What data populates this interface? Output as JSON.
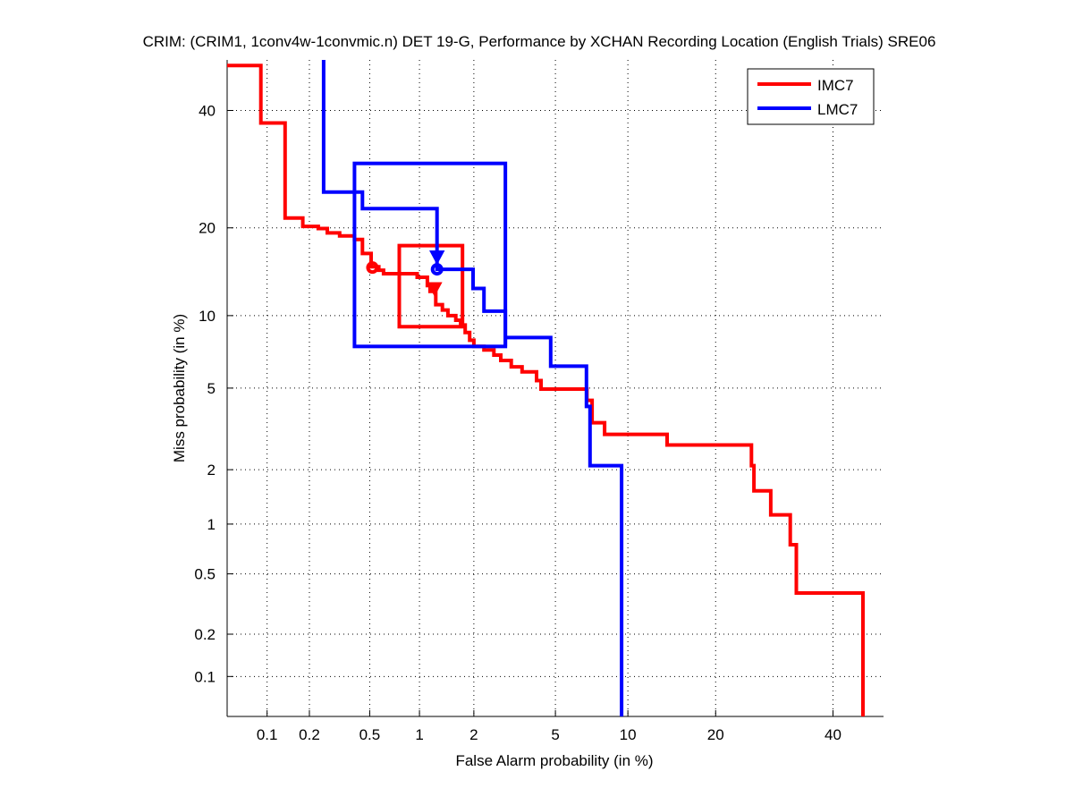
{
  "chart_data": {
    "type": "line",
    "title": "CRIM: (CRIM1, 1conv4w-1convmic.n) DET 19-G,  Performance by XCHAN Recording Location (English Trials) SRE06",
    "xlabel": "False Alarm probability (in %)",
    "ylabel": "Miss probability (in %)",
    "x_scale": "normal-deviate",
    "y_scale": "normal-deviate",
    "xlim": [
      0.05,
      50
    ],
    "ylim": [
      0.05,
      50
    ],
    "xticks": [
      0.1,
      0.2,
      0.5,
      1,
      2,
      5,
      10,
      20,
      40
    ],
    "xtick_labels": [
      "0.1",
      "0.2",
      "0.5",
      "1",
      "2",
      "5",
      "10",
      "20",
      "40"
    ],
    "yticks": [
      0.1,
      0.2,
      0.5,
      1,
      2,
      5,
      10,
      20,
      40
    ],
    "ytick_labels": [
      "0.1",
      "0.2",
      "0.5",
      "1",
      "2",
      "5",
      "10",
      "20",
      "40"
    ],
    "grid": true,
    "legend_position": "top-right",
    "series": [
      {
        "name": "IMC7",
        "color": "#ff0000",
        "points": [
          [
            0.05,
            48.9
          ],
          [
            0.09,
            48.9
          ],
          [
            0.09,
            37.6
          ],
          [
            0.135,
            37.6
          ],
          [
            0.135,
            21.4
          ],
          [
            0.18,
            21.4
          ],
          [
            0.18,
            20.2
          ],
          [
            0.23,
            20.2
          ],
          [
            0.23,
            19.9
          ],
          [
            0.265,
            19.9
          ],
          [
            0.265,
            19.3
          ],
          [
            0.32,
            19.3
          ],
          [
            0.32,
            18.9
          ],
          [
            0.4,
            18.9
          ],
          [
            0.4,
            18.4
          ],
          [
            0.45,
            18.4
          ],
          [
            0.45,
            16.6
          ],
          [
            0.51,
            16.6
          ],
          [
            0.51,
            15.0
          ],
          [
            0.57,
            15.0
          ],
          [
            0.57,
            14.6
          ],
          [
            0.61,
            14.6
          ],
          [
            0.61,
            14.2
          ],
          [
            0.97,
            14.2
          ],
          [
            0.97,
            13.8
          ],
          [
            1.11,
            13.8
          ],
          [
            1.11,
            12.9
          ],
          [
            1.15,
            12.9
          ],
          [
            1.15,
            12.3
          ],
          [
            1.24,
            12.3
          ],
          [
            1.24,
            11.0
          ],
          [
            1.35,
            11.0
          ],
          [
            1.35,
            10.5
          ],
          [
            1.45,
            10.5
          ],
          [
            1.45,
            10.0
          ],
          [
            1.6,
            10.0
          ],
          [
            1.6,
            9.6
          ],
          [
            1.7,
            9.6
          ],
          [
            1.7,
            9.2
          ],
          [
            1.8,
            9.2
          ],
          [
            1.8,
            8.6
          ],
          [
            1.9,
            8.6
          ],
          [
            1.9,
            8.0
          ],
          [
            2.0,
            8.0
          ],
          [
            2.0,
            7.55
          ],
          [
            2.26,
            7.55
          ],
          [
            2.26,
            7.3
          ],
          [
            2.54,
            7.3
          ],
          [
            2.54,
            6.95
          ],
          [
            2.75,
            6.95
          ],
          [
            2.75,
            6.6
          ],
          [
            3.1,
            6.6
          ],
          [
            3.1,
            6.2
          ],
          [
            3.5,
            6.2
          ],
          [
            3.5,
            5.9
          ],
          [
            4.1,
            5.9
          ],
          [
            4.1,
            5.4
          ],
          [
            4.3,
            5.4
          ],
          [
            4.3,
            4.95
          ],
          [
            6.85,
            4.95
          ],
          [
            6.85,
            4.4
          ],
          [
            7.2,
            4.4
          ],
          [
            7.2,
            3.45
          ],
          [
            8.1,
            3.45
          ],
          [
            8.1,
            3.03
          ],
          [
            13.9,
            3.03
          ],
          [
            13.9,
            2.68
          ],
          [
            25.4,
            2.68
          ],
          [
            25.4,
            2.1
          ],
          [
            25.8,
            2.1
          ],
          [
            25.8,
            1.54
          ],
          [
            28.6,
            1.54
          ],
          [
            28.6,
            1.13
          ],
          [
            32.0,
            1.13
          ],
          [
            32.0,
            0.755
          ],
          [
            33.1,
            0.755
          ],
          [
            33.1,
            0.377
          ],
          [
            45.9,
            0.377
          ],
          [
            45.9,
            0.05
          ]
        ],
        "confidence_box": {
          "fa": [
            0.76,
            1.74
          ],
          "miss": [
            9.06,
            17.6
          ]
        },
        "min_dcf_point": {
          "fa": 0.52,
          "miss": 14.9,
          "marker": "circle"
        },
        "act_dcf_point": {
          "fa": 1.22,
          "miss": 12.6,
          "marker": "triangle-down"
        }
      },
      {
        "name": "LMC7",
        "color": "#0000ff",
        "points": [
          [
            0.25,
            50
          ],
          [
            0.25,
            25.4
          ],
          [
            0.45,
            25.4
          ],
          [
            0.45,
            22.8
          ],
          [
            1.26,
            22.8
          ],
          [
            1.26,
            14.7
          ],
          [
            1.98,
            14.7
          ],
          [
            1.98,
            12.6
          ],
          [
            2.26,
            12.6
          ],
          [
            2.26,
            10.4
          ],
          [
            2.9,
            10.4
          ],
          [
            2.9,
            7.55
          ],
          [
            2.9,
            8.2
          ],
          [
            4.76,
            8.2
          ],
          [
            4.76,
            6.24
          ],
          [
            6.82,
            6.24
          ],
          [
            6.82,
            4.12
          ],
          [
            7.06,
            4.12
          ],
          [
            7.06,
            2.1
          ],
          [
            9.46,
            2.1
          ],
          [
            9.46,
            0.05
          ]
        ],
        "confidence_box": {
          "fa": [
            0.4,
            2.9
          ],
          "miss": [
            7.55,
            30.2
          ]
        },
        "min_dcf_point": {
          "fa": 1.26,
          "miss": 14.7,
          "marker": "circle"
        },
        "act_dcf_point": {
          "fa": 1.26,
          "miss": 16.2,
          "marker": "triangle-down"
        }
      }
    ]
  }
}
